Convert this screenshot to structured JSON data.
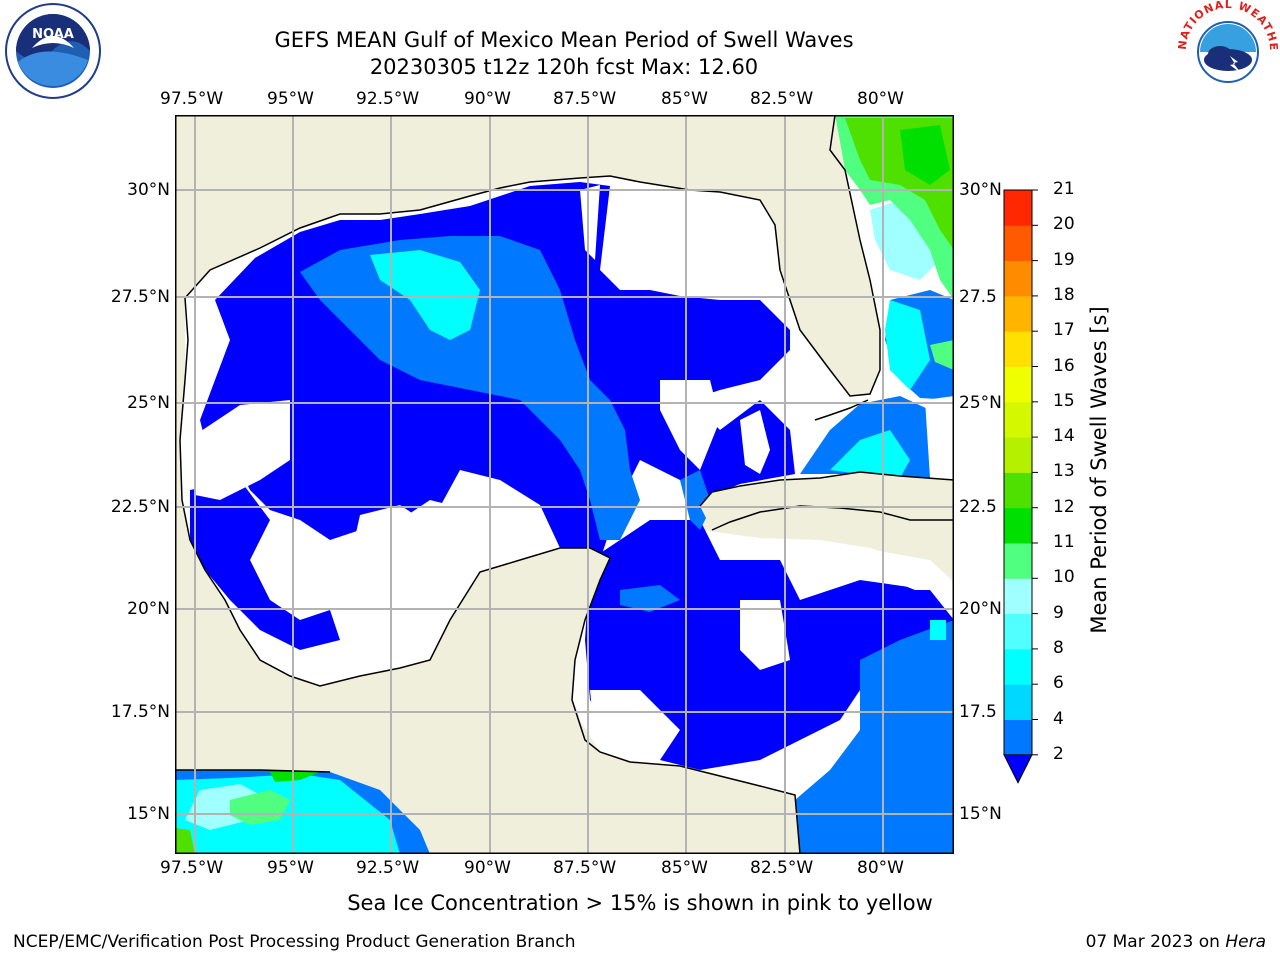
{
  "title": {
    "line1": "GEFS MEAN Gulf of Mexico Mean Period of Swell Waves",
    "line2": "20230305 t12z 120h fcst   Max: 12.60"
  },
  "logos": {
    "left": {
      "text": "NOAA",
      "icon": "noaa-logo-icon"
    },
    "right": {
      "text": "NATIONAL WEATHER SERVICE",
      "icon": "nws-logo-icon"
    }
  },
  "map": {
    "lon_ticks": [
      "97.5°W",
      "95°W",
      "92.5°W",
      "90°W",
      "87.5°W",
      "85°W",
      "82.5°W",
      "80°W"
    ],
    "lat_ticks_left": [
      "30°N",
      "27.5°N",
      "25°N",
      "22.5°N",
      "20°N",
      "17.5°N",
      "15°N"
    ],
    "lat_ticks_right": [
      "30°N",
      "27.5",
      "25°N",
      "22.5",
      "20°N",
      "17.5",
      "15°N"
    ],
    "colors": {
      "land": "#efefdc",
      "nodata": "#ffffff",
      "coast": "#000000",
      "grid": "#b3b3b3"
    }
  },
  "colorbar": {
    "label": "Mean Period of Swell Waves [s]",
    "ticks": [
      "2",
      "4",
      "6",
      "8",
      "9",
      "10",
      "11",
      "12",
      "13",
      "14",
      "15",
      "16",
      "17",
      "18",
      "19",
      "20",
      "21"
    ],
    "colors": [
      "#0000ff",
      "#0078ff",
      "#00d8ff",
      "#00ffff",
      "#50ffff",
      "#a0ffff",
      "#50ff80",
      "#00e000",
      "#50e000",
      "#b4f000",
      "#d4f800",
      "#f0ff00",
      "#ffe000",
      "#ffb400",
      "#ff8c00",
      "#ff5a00",
      "#ff2800",
      "#ff0000"
    ]
  },
  "caption": "Sea Ice Concentration > 15% is shown in pink to yellow",
  "footer": {
    "left": "NCEP/EMC/Verification Post Processing Product Generation Branch",
    "date": "07 Mar 2023 on ",
    "host": "Hera"
  }
}
